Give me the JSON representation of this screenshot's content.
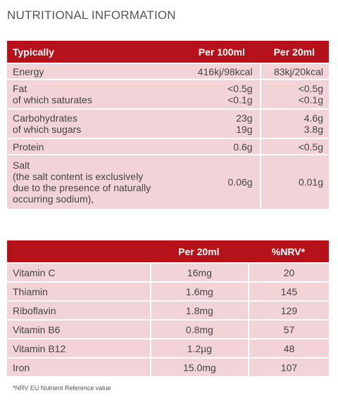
{
  "title": "NUTRITIONAL INFORMATION",
  "colors": {
    "header": "#b5121b",
    "row": "#f2d4d8",
    "text": "#444444"
  },
  "nutrition": {
    "headers": [
      "Typically",
      "Per 100ml",
      "Per 20ml"
    ],
    "rows": [
      {
        "labels": [
          "Energy"
        ],
        "per100": [
          "416kj/98kcal"
        ],
        "per20": [
          "83kj/20kcal"
        ]
      },
      {
        "labels": [
          "Fat",
          "of which saturates"
        ],
        "per100": [
          "<0.5g",
          "<0.1g"
        ],
        "per20": [
          "<0.5g",
          "<0.1g"
        ]
      },
      {
        "labels": [
          "Carbohydrates",
          "of which sugars"
        ],
        "per100": [
          "23g",
          "19g"
        ],
        "per20": [
          "4.6g",
          "3.8g"
        ]
      },
      {
        "labels": [
          "Protein"
        ],
        "per100": [
          "0.6g"
        ],
        "per20": [
          "<0.5g"
        ]
      },
      {
        "labels": [
          "Salt",
          "(the salt content is exclusively",
          "due to the presence of naturally",
          "occurring sodium),"
        ],
        "per100": [
          "0.06g"
        ],
        "per20": [
          "0.01g"
        ]
      }
    ]
  },
  "vitamins": {
    "headers": [
      "",
      "Per 20ml",
      "%NRV*"
    ],
    "rows": [
      {
        "name": "Vitamin C",
        "per20": "16mg",
        "nrv": "20"
      },
      {
        "name": "Thiamin",
        "per20": "1.6mg",
        "nrv": "145"
      },
      {
        "name": "Riboflavin",
        "per20": "1.8mg",
        "nrv": "129"
      },
      {
        "name": "Vitamin B6",
        "per20": "0.8mg",
        "nrv": "57"
      },
      {
        "name": "Vitamin B12",
        "per20": "1.2µg",
        "nrv": "48"
      },
      {
        "name": "Iron",
        "per20": "15.0mg",
        "nrv": "107"
      }
    ]
  },
  "footnote": "*NRV EU Nutrient Reference value"
}
